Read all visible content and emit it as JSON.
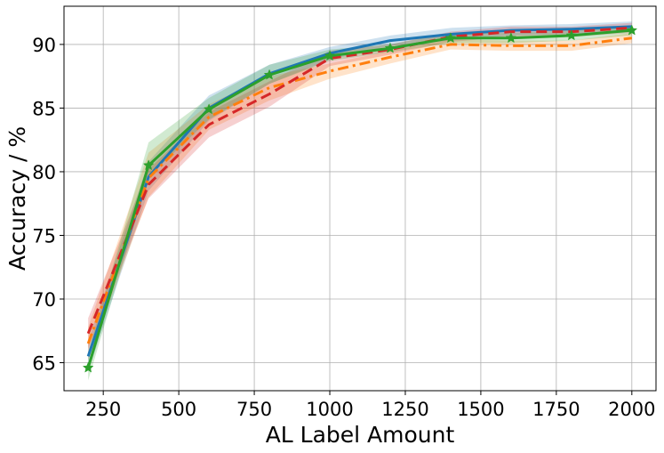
{
  "chart_data": {
    "type": "line",
    "xlabel": "AL Label Amount",
    "ylabel": "Accuracy / %",
    "xlim": [
      120,
      2080
    ],
    "ylim": [
      62.8,
      93.0
    ],
    "xticks": [
      250,
      500,
      750,
      1000,
      1250,
      1500,
      1750,
      2000
    ],
    "yticks": [
      65,
      70,
      75,
      80,
      85,
      90
    ],
    "grid": true,
    "x": [
      200,
      400,
      600,
      800,
      1000,
      1200,
      1400,
      1600,
      1800,
      2000
    ],
    "series": [
      {
        "color": "#1f77b4",
        "style": "solid",
        "marker": "none",
        "values": [
          65.5,
          79.6,
          85.0,
          87.7,
          89.3,
          90.3,
          90.8,
          91.1,
          91.2,
          91.4
        ],
        "lower": [
          64.3,
          78.5,
          84.0,
          86.9,
          88.8,
          89.9,
          90.3,
          90.7,
          90.8,
          91.0
        ],
        "upper": [
          66.7,
          80.8,
          86.0,
          88.4,
          89.8,
          90.7,
          91.3,
          91.5,
          91.6,
          91.8
        ]
      },
      {
        "color": "#ff7f0e",
        "style": "dashdot",
        "marker": "none",
        "values": [
          66.5,
          79.5,
          84.3,
          86.6,
          87.9,
          89.0,
          90.0,
          89.9,
          89.9,
          90.5
        ],
        "lower": [
          65.2,
          78.0,
          83.3,
          85.6,
          87.3,
          88.5,
          89.6,
          89.5,
          89.5,
          90.1
        ],
        "upper": [
          67.8,
          81.5,
          85.3,
          87.5,
          88.5,
          89.5,
          90.4,
          90.3,
          90.3,
          90.9
        ]
      },
      {
        "color": "#d62728",
        "style": "dashed",
        "marker": "none",
        "values": [
          67.3,
          79.0,
          83.7,
          86.1,
          88.9,
          89.6,
          90.6,
          91.0,
          91.0,
          91.3
        ],
        "lower": [
          66.1,
          77.9,
          82.7,
          85.1,
          88.3,
          89.2,
          90.2,
          90.6,
          90.6,
          90.9
        ],
        "upper": [
          68.5,
          80.2,
          84.7,
          87.1,
          89.5,
          90.0,
          91.0,
          91.4,
          91.4,
          91.7
        ]
      },
      {
        "color": "#2ca02c",
        "style": "solid",
        "marker": "star",
        "values": [
          64.6,
          80.5,
          84.9,
          87.6,
          89.1,
          89.7,
          90.5,
          90.5,
          90.7,
          91.1
        ],
        "lower": [
          63.6,
          79.6,
          84.1,
          86.9,
          88.7,
          89.4,
          90.1,
          90.1,
          90.3,
          90.7
        ],
        "upper": [
          65.8,
          82.3,
          85.8,
          88.4,
          89.6,
          90.0,
          90.9,
          90.9,
          91.1,
          91.5
        ]
      }
    ]
  }
}
